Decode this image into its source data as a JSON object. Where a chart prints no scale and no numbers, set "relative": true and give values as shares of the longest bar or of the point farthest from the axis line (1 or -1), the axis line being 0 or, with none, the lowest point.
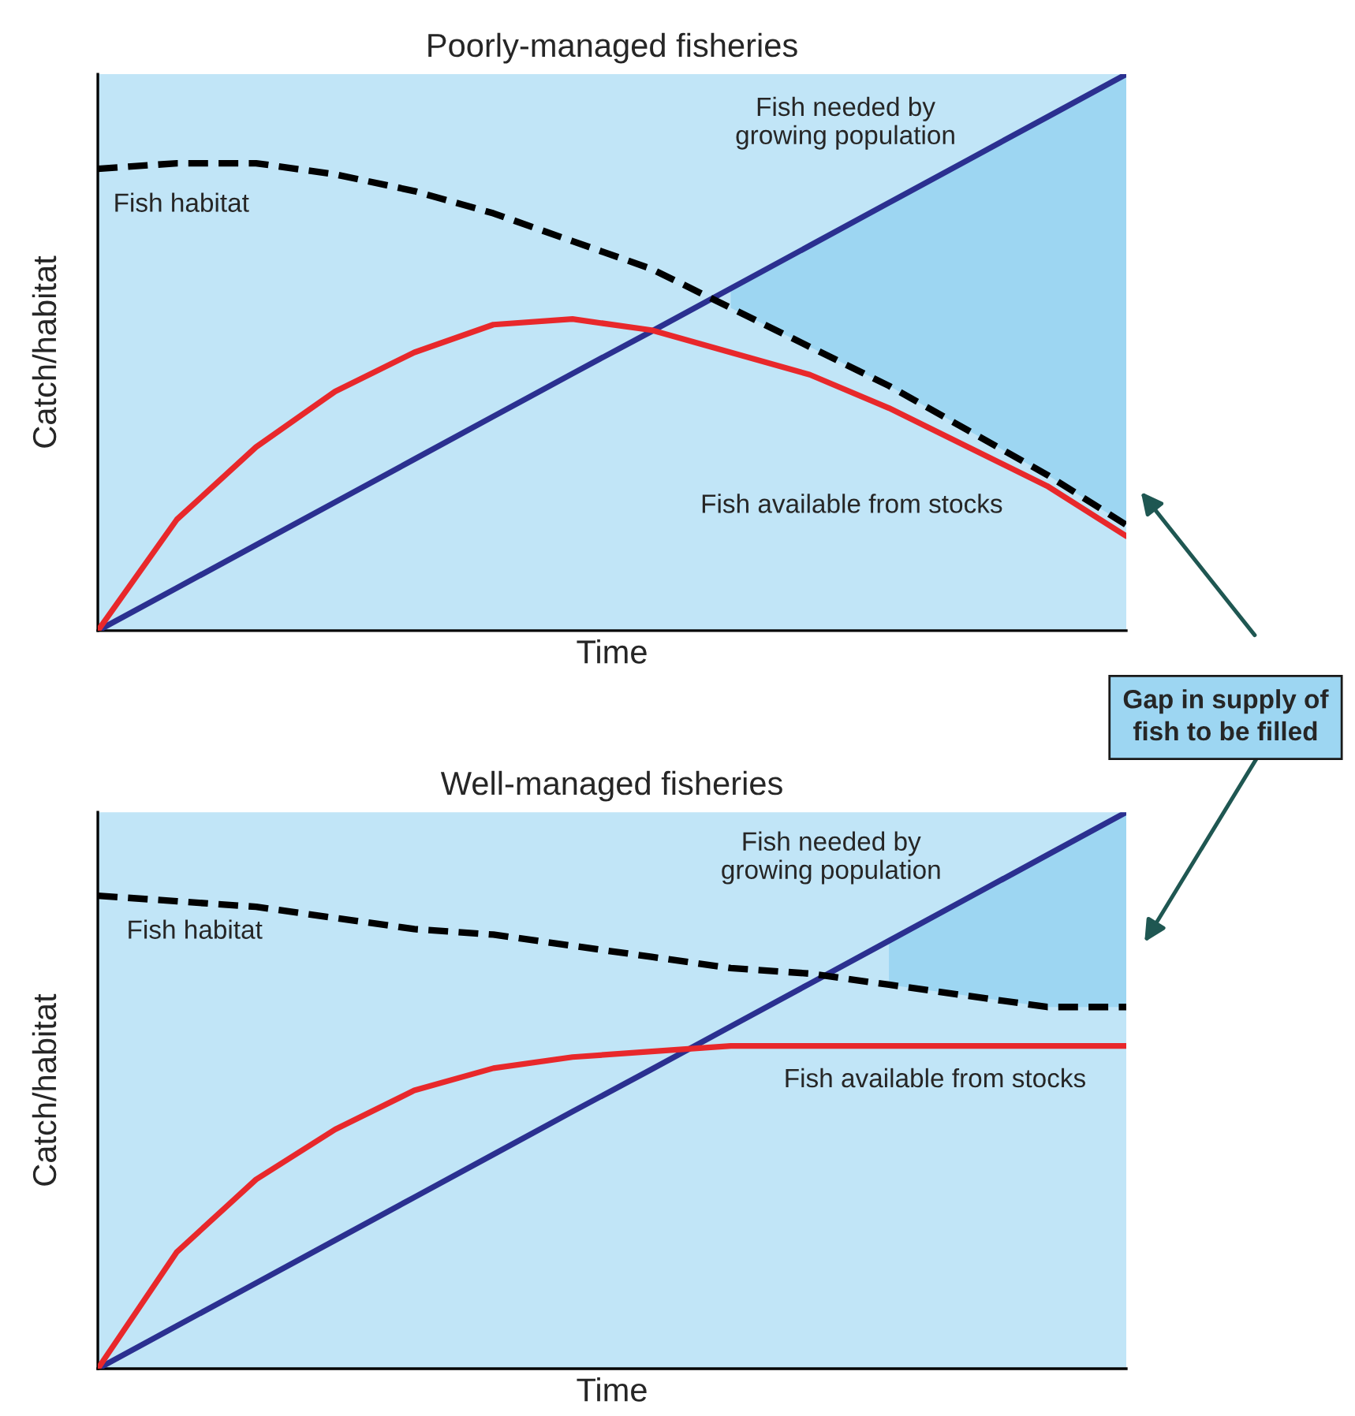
{
  "chart_data": [
    {
      "type": "line",
      "title": "Poorly-managed fisheries",
      "xlabel": "Time",
      "ylabel": "Catch/habitat",
      "relative": true,
      "marker": "none",
      "categories": [
        null,
        null,
        null,
        null,
        null,
        null,
        null,
        null,
        null,
        null,
        null,
        null,
        null,
        null
      ],
      "annotations": [
        "Gap in supply of fish to be filled"
      ],
      "series": [
        {
          "name": "Fish needed by\ngrowing population",
          "color": "#2b3090",
          "line_style": "solid",
          "values": [
            0,
            0.077,
            0.154,
            0.231,
            0.308,
            0.385,
            0.462,
            0.538,
            0.615,
            0.692,
            0.769,
            0.846,
            0.923,
            1
          ],
          "lower": [
            null,
            null,
            null,
            null,
            null,
            null,
            null,
            null,
            0.58,
            0.51,
            0.44,
            0.36,
            0.28,
            0.19
          ],
          "upper": [
            null,
            null,
            null,
            null,
            null,
            null,
            null,
            null,
            0.615,
            0.692,
            0.769,
            0.846,
            0.923,
            1
          ]
        },
        {
          "name": "Fish habitat",
          "color": "#000000",
          "line_style": "dashed",
          "values": [
            0.83,
            0.84,
            0.84,
            0.82,
            0.79,
            0.75,
            0.7,
            0.65,
            0.58,
            0.51,
            0.44,
            0.36,
            0.28,
            0.19
          ]
        },
        {
          "name": "Fish available from stocks",
          "color": "#e8282b",
          "line_style": "solid",
          "values": [
            0,
            0.2,
            0.33,
            0.43,
            0.5,
            0.55,
            0.56,
            0.54,
            0.5,
            0.46,
            0.4,
            0.33,
            0.26,
            0.17
          ]
        }
      ]
    },
    {
      "type": "line",
      "title": "Well-managed fisheries",
      "xlabel": "Time",
      "ylabel": "Catch/habitat",
      "relative": true,
      "marker": "none",
      "categories": [
        null,
        null,
        null,
        null,
        null,
        null,
        null,
        null,
        null,
        null,
        null,
        null,
        null,
        null
      ],
      "series": [
        {
          "name": "Fish needed by\ngrowing population",
          "color": "#2b3090",
          "line_style": "solid",
          "values": [
            0,
            0.077,
            0.154,
            0.231,
            0.308,
            0.385,
            0.462,
            0.538,
            0.615,
            0.692,
            0.769,
            0.846,
            0.923,
            1
          ],
          "lower": [
            null,
            null,
            null,
            null,
            null,
            null,
            null,
            null,
            null,
            null,
            0.69,
            0.67,
            0.65,
            0.65
          ],
          "upper": [
            null,
            null,
            null,
            null,
            null,
            null,
            null,
            null,
            null,
            null,
            0.769,
            0.846,
            0.923,
            1
          ]
        },
        {
          "name": "Fish habitat",
          "color": "#000000",
          "line_style": "dashed",
          "values": [
            0.85,
            0.84,
            0.83,
            0.81,
            0.79,
            0.78,
            0.76,
            0.74,
            0.72,
            0.71,
            0.69,
            0.67,
            0.65,
            0.65
          ]
        },
        {
          "name": "Fish available from stocks",
          "color": "#e8282b",
          "line_style": "solid",
          "values": [
            0,
            0.21,
            0.34,
            0.43,
            0.5,
            0.54,
            0.56,
            0.57,
            0.58,
            0.58,
            0.58,
            0.58,
            0.58,
            0.58
          ]
        }
      ]
    }
  ]
}
